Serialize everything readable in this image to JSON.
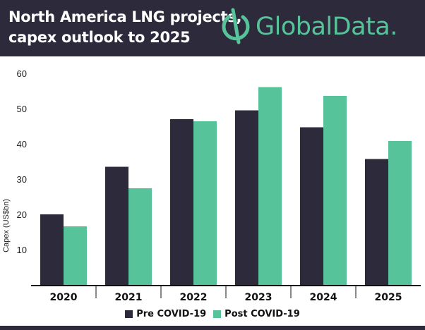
{
  "header": {
    "title_line1": "North America LNG projects,",
    "title_line2": "capex outlook to 2025",
    "logo_text": "GlobalData."
  },
  "colors": {
    "header_bg": "#2d2a3c",
    "pre": "#2d2a3c",
    "post": "#57c39a",
    "logo": "#57c39a"
  },
  "chart_data": {
    "type": "bar",
    "categories": [
      "2020",
      "2021",
      "2022",
      "2023",
      "2024",
      "2025"
    ],
    "series": [
      {
        "name": "Pre COVID-19",
        "values": [
          20.2,
          33.7,
          47.2,
          49.7,
          44.9,
          35.9
        ]
      },
      {
        "name": "Post COVID-19",
        "values": [
          16.8,
          27.6,
          46.6,
          56.3,
          53.8,
          41.0
        ]
      }
    ],
    "title": "North America LNG projects, capex outlook to 2025",
    "xlabel": "",
    "ylabel": "Capex (US$bn)",
    "ylim": [
      0,
      60
    ],
    "yticks": [
      10,
      20,
      30,
      40,
      50,
      60
    ],
    "grid": false,
    "legend": "bottom-center"
  }
}
